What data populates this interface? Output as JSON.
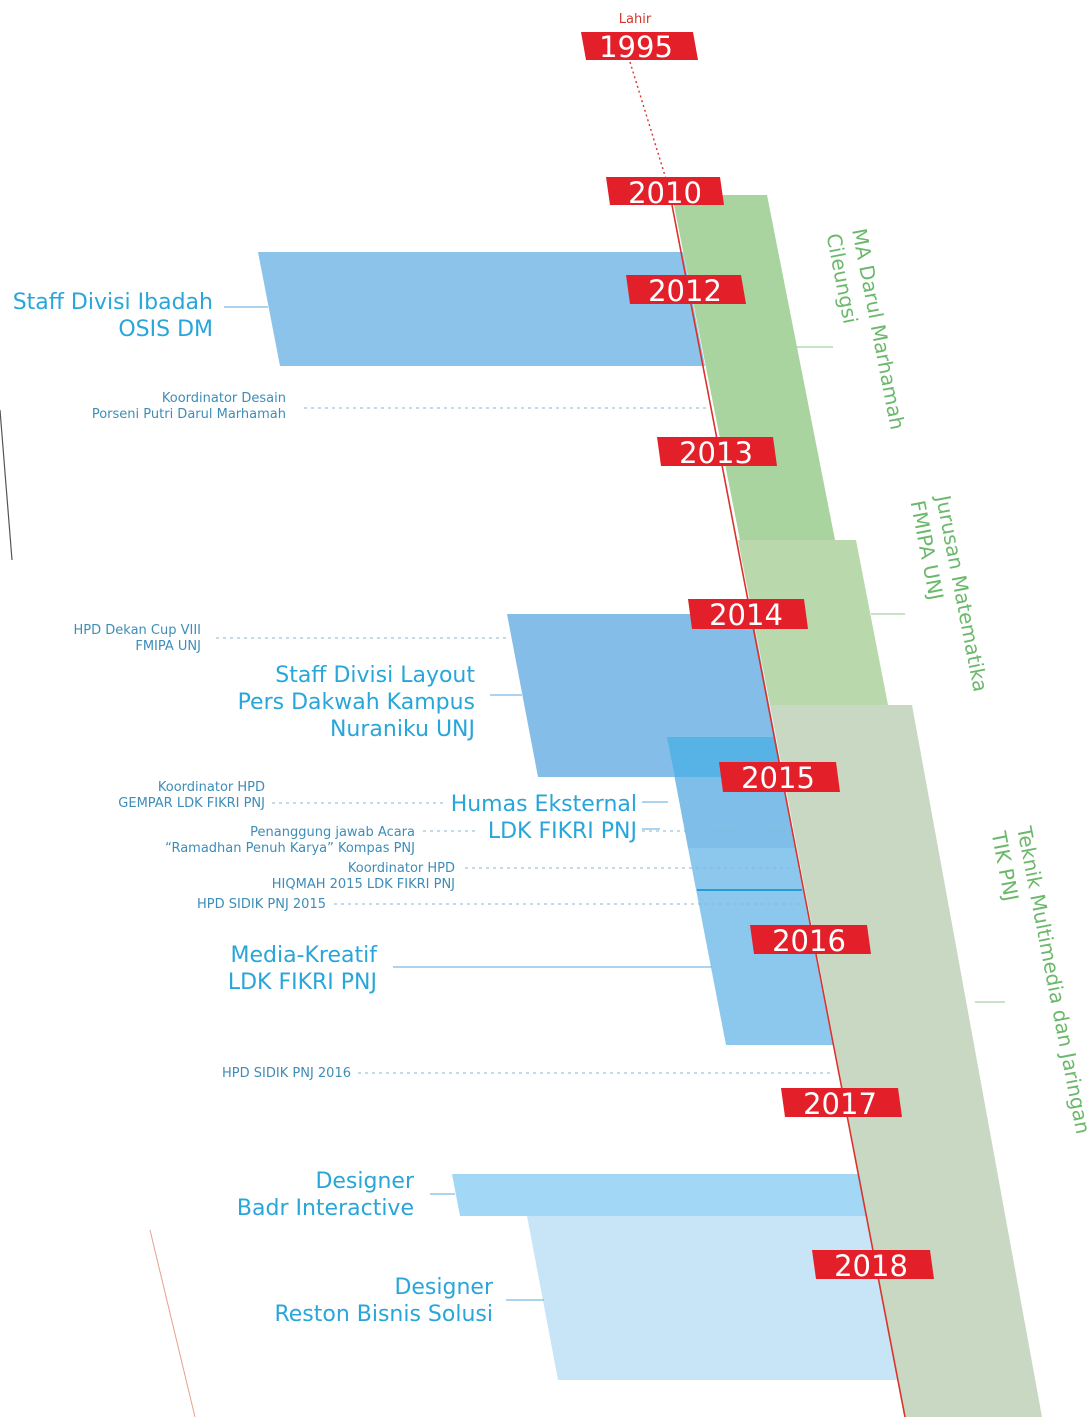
{
  "birth": {
    "label": "Lahir",
    "year": "1995"
  },
  "years": [
    "2010",
    "2012",
    "2013",
    "2014",
    "2015",
    "2016",
    "2017",
    "2018"
  ],
  "education": [
    {
      "line1": "MA Darul Marhamah",
      "line2": "Cileungsi"
    },
    {
      "line1": "Jurusan Matematika",
      "line2": "FMIPA UNJ"
    },
    {
      "line1": "Teknik Multimedia dan Jaringan",
      "line2": "TIK PNJ"
    }
  ],
  "roles": [
    {
      "line1": "Staff Divisi Ibadah",
      "line2": "OSIS DM"
    },
    {
      "line1": "Staff Divisi Layout",
      "line2": "Pers Dakwah Kampus",
      "line3": "Nuraniku UNJ"
    },
    {
      "line1": "Humas Eksternal",
      "line2": "LDK FIKRI PNJ"
    },
    {
      "line1": "Media-Kreatif",
      "line2": "LDK FIKRI PNJ"
    },
    {
      "line1": "Designer",
      "line2": "Badr Interactive"
    },
    {
      "line1": "Designer",
      "line2": "Reston Bisnis Solusi"
    }
  ],
  "events": [
    {
      "line1": "Koordinator Desain",
      "line2": "Porseni Putri Darul Marhamah"
    },
    {
      "line1": "HPD Dekan Cup VIII",
      "line2": "FMIPA UNJ"
    },
    {
      "line1": "Koordinator HPD",
      "line2": "GEMPAR LDK FIKRI PNJ"
    },
    {
      "line1": "Penanggung jawab Acara",
      "line2": "“Ramadhan Penuh Karya” Kompas PNJ"
    },
    {
      "line1": "Koordinator HPD",
      "line2": "HIQMAH 2015 LDK FIKRI PNJ"
    },
    {
      "line1": "HPD SIDIK PNJ 2015"
    },
    {
      "line1": "HPD SIDIK PNJ 2016"
    }
  ],
  "colors": {
    "year_badge": "#e3202a",
    "timeline": "#d9342b",
    "edu_green": "#a9d39f",
    "edu_sage": "#c6d8c1",
    "edu_text": "#6bb86b",
    "role_blue": "#7ab9e6",
    "role_text": "#29a6d9",
    "event_text": "#3d8db8"
  }
}
